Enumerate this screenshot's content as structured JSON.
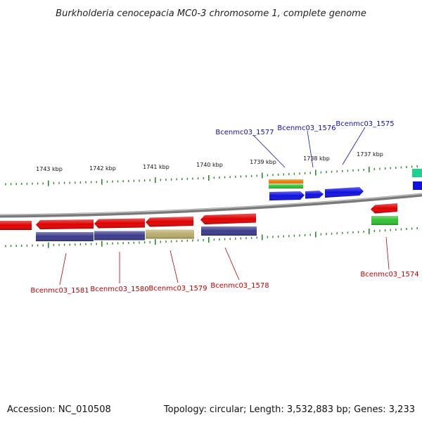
{
  "title": "Burkholderia cenocepacia MC0-3 chromosome 1, complete genome",
  "footer": {
    "accession": "Accession: NC_010508",
    "summary": "Topology: circular; Length: 3,532,883 bp; Genes: 3,233"
  },
  "scale_labels": [
    "1743 kbp",
    "1742 kbp",
    "1741 kbp",
    "1740 kbp",
    "1739 kbp",
    "1738 kbp",
    "1737 kbp"
  ],
  "gene_labels": {
    "forward": [
      "Bcenmc03_1577",
      "Bcenmc03_1576",
      "Bcenmc03_1575"
    ],
    "reverse": [
      "Bcenmc03_1581",
      "Bcenmc03_1580",
      "Bcenmc03_1579",
      "Bcenmc03_1578",
      "Bcenmc03_1574"
    ]
  },
  "colors": {
    "backbone": "#808080",
    "tick": "#2a8a2a",
    "forward_label": "#1010b0",
    "reverse_label": "#c00000",
    "cds_red": "#e00000",
    "cds_blue": "#1010e0",
    "cds_navy": "#3a3a8c",
    "cds_khaki": "#b8ad6a",
    "cds_orange": "#f08000",
    "cds_green": "#30c030",
    "cds_teal": "#20d090"
  }
}
